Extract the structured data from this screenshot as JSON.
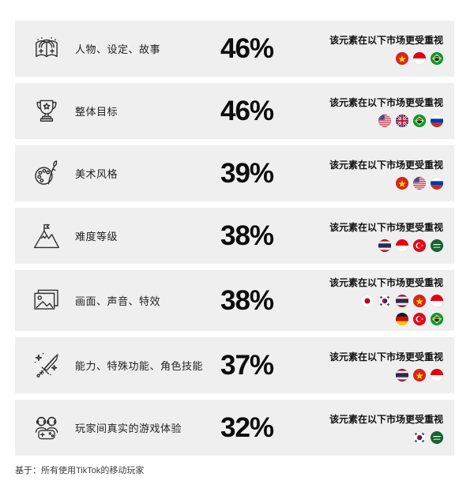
{
  "page": {
    "footnote": "基于：所有使用TikTok的移动玩家"
  },
  "colors": {
    "row_background": "#efefef",
    "text": "#1a1a1a",
    "icon_stroke": "#2f2f2f"
  },
  "rows": [
    {
      "icon": "storybook-icon",
      "label": "人物、设定、故事",
      "value": "46%",
      "note": "该元素在以下市场更受重视",
      "flags": [
        "vietnam",
        "indonesia",
        "brazil"
      ]
    },
    {
      "icon": "trophy-icon",
      "label": "整体目标",
      "value": "46%",
      "note": "该元素在以下市场更受重视",
      "flags": [
        "usa",
        "uk",
        "brazil",
        "russia"
      ]
    },
    {
      "icon": "palette-icon",
      "label": "美术风格",
      "value": "39%",
      "note": "该元素在以下市场更受重视",
      "flags": [
        "vietnam",
        "usa",
        "russia"
      ]
    },
    {
      "icon": "mountain-icon",
      "label": "难度等级",
      "value": "38%",
      "note": "该元素在以下市场更受重视",
      "flags": [
        "thailand",
        "indonesia",
        "turkey",
        "saudi-arabia"
      ]
    },
    {
      "icon": "media-icon",
      "label": "画面、声音、特效",
      "value": "38%",
      "note": "该元素在以下市场更受重视",
      "flags": [
        "japan",
        "south-korea",
        "thailand",
        "vietnam",
        "indonesia",
        "germany",
        "turkey",
        "brazil"
      ]
    },
    {
      "icon": "sword-icon",
      "label": "能力、特殊功能、角色技能",
      "value": "37%",
      "note": "该元素在以下市场更受重视",
      "flags": [
        "thailand",
        "vietnam",
        "indonesia"
      ]
    },
    {
      "icon": "players-icon",
      "label": "玩家间真实的游戏体验",
      "value": "32%",
      "note": "该元素在以下市场更受重视",
      "flags": [
        "south-korea",
        "saudi-arabia"
      ]
    }
  ],
  "chart_data": {
    "type": "bar",
    "title": "",
    "unit": "%",
    "categories": [
      "人物、设定、故事",
      "整体目标",
      "美术风格",
      "难度等级",
      "画面、声音、特效",
      "能力、特殊功能、角色技能",
      "玩家间真实的游戏体验"
    ],
    "values": [
      46,
      46,
      39,
      38,
      38,
      37,
      32
    ],
    "per_row_annotation": "该元素在以下市场更受重视",
    "markets": [
      [
        "Vietnam",
        "Indonesia",
        "Brazil"
      ],
      [
        "United States",
        "United Kingdom",
        "Brazil",
        "Russia"
      ],
      [
        "Vietnam",
        "United States",
        "Russia"
      ],
      [
        "Thailand",
        "Indonesia",
        "Turkey",
        "Saudi Arabia"
      ],
      [
        "Japan",
        "South Korea",
        "Thailand",
        "Vietnam",
        "Indonesia",
        "Germany",
        "Turkey",
        "Brazil"
      ],
      [
        "Thailand",
        "Vietnam",
        "Indonesia"
      ],
      [
        "South Korea",
        "Saudi Arabia"
      ]
    ],
    "footnote": "基于：所有使用TikTok的移动玩家",
    "legend_position": "none",
    "grid": false
  }
}
